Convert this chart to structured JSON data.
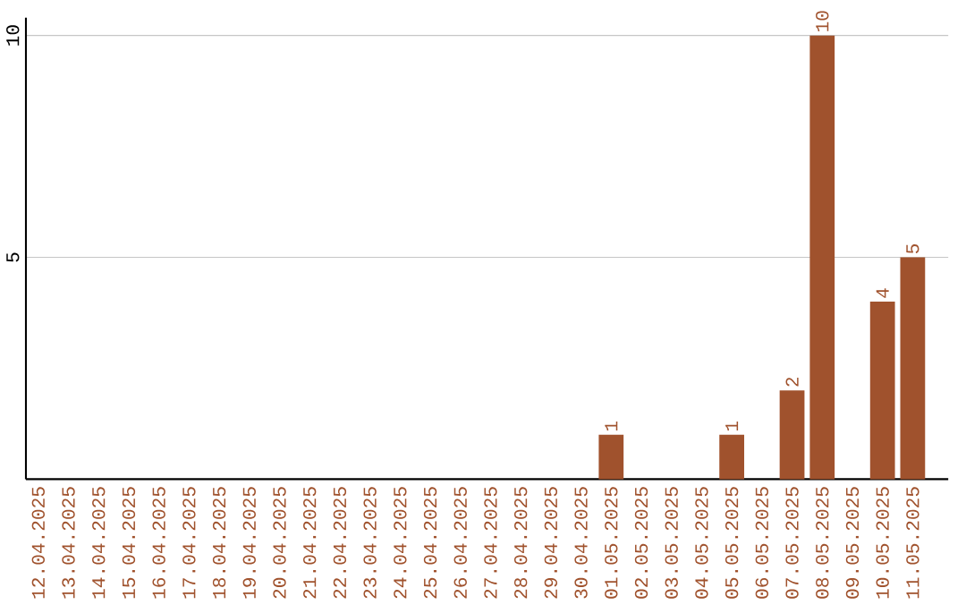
{
  "chart_data": {
    "type": "bar",
    "categories": [
      "12.04.2025",
      "13.04.2025",
      "14.04.2025",
      "15.04.2025",
      "16.04.2025",
      "17.04.2025",
      "18.04.2025",
      "19.04.2025",
      "20.04.2025",
      "21.04.2025",
      "22.04.2025",
      "23.04.2025",
      "24.04.2025",
      "25.04.2025",
      "26.04.2025",
      "27.04.2025",
      "28.04.2025",
      "29.04.2025",
      "30.04.2025",
      "01.05.2025",
      "02.05.2025",
      "03.05.2025",
      "04.05.2025",
      "05.05.2025",
      "06.05.2025",
      "07.05.2025",
      "08.05.2025",
      "09.05.2025",
      "10.05.2025",
      "11.05.2025"
    ],
    "values": [
      0,
      0,
      0,
      0,
      0,
      0,
      0,
      0,
      0,
      0,
      0,
      0,
      0,
      0,
      0,
      0,
      0,
      0,
      0,
      1,
      0,
      0,
      0,
      1,
      0,
      2,
      10,
      0,
      4,
      5
    ],
    "value_labels": [
      null,
      null,
      null,
      null,
      null,
      null,
      null,
      null,
      null,
      null,
      null,
      null,
      null,
      null,
      null,
      null,
      null,
      null,
      null,
      "1",
      null,
      null,
      null,
      "1",
      null,
      "2",
      "10",
      null,
      "4",
      "5"
    ],
    "color": "#a0522d",
    "ylim": [
      0,
      10.4
    ],
    "yticks": [
      5,
      10
    ],
    "grid": "y"
  }
}
